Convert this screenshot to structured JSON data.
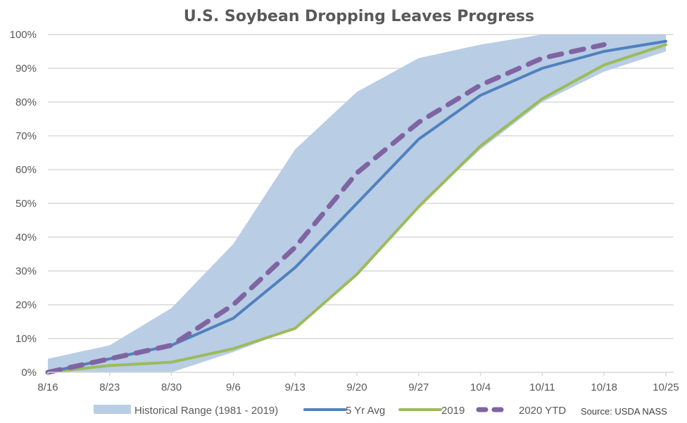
{
  "chart_data": {
    "type": "line",
    "title": "U.S. Soybean Dropping Leaves Progress",
    "xlabel": "",
    "ylabel": "",
    "ylim": [
      0,
      100
    ],
    "yticks": [
      "0%",
      "10%",
      "20%",
      "30%",
      "40%",
      "50%",
      "60%",
      "70%",
      "80%",
      "90%",
      "100%"
    ],
    "ytick_values": [
      0,
      10,
      20,
      30,
      40,
      50,
      60,
      70,
      80,
      90,
      100
    ],
    "categories": [
      "8/16",
      "8/23",
      "8/30",
      "9/6",
      "9/13",
      "9/20",
      "9/27",
      "10/4",
      "10/11",
      "10/18",
      "10/25"
    ],
    "grid": "horizontal",
    "legend_position": "bottom",
    "range": {
      "name": "Historical Range (1981 - 2019)",
      "lower": [
        0,
        0,
        0,
        6,
        13,
        29,
        49,
        66,
        80,
        89,
        95
      ],
      "upper": [
        4,
        8,
        19,
        38,
        66,
        83,
        93,
        97,
        100,
        100,
        100
      ],
      "color": "#B9CDE5"
    },
    "series": [
      {
        "name": "5 Yr Avg",
        "values": [
          0,
          4,
          8,
          16,
          31,
          50,
          69,
          82,
          90,
          95,
          98
        ],
        "color": "#4F81BD",
        "style": "solid"
      },
      {
        "name": "2019",
        "values": [
          0,
          2,
          3,
          7,
          13,
          29,
          49,
          67,
          81,
          91,
          97
        ],
        "color": "#9BBB59",
        "style": "solid"
      },
      {
        "name": "2020 YTD",
        "values": [
          0,
          4,
          8,
          20,
          37,
          59,
          74,
          85,
          93,
          97,
          null
        ],
        "color": "#8064A2",
        "style": "dashed"
      }
    ],
    "source": "Source: USDA NASS"
  }
}
